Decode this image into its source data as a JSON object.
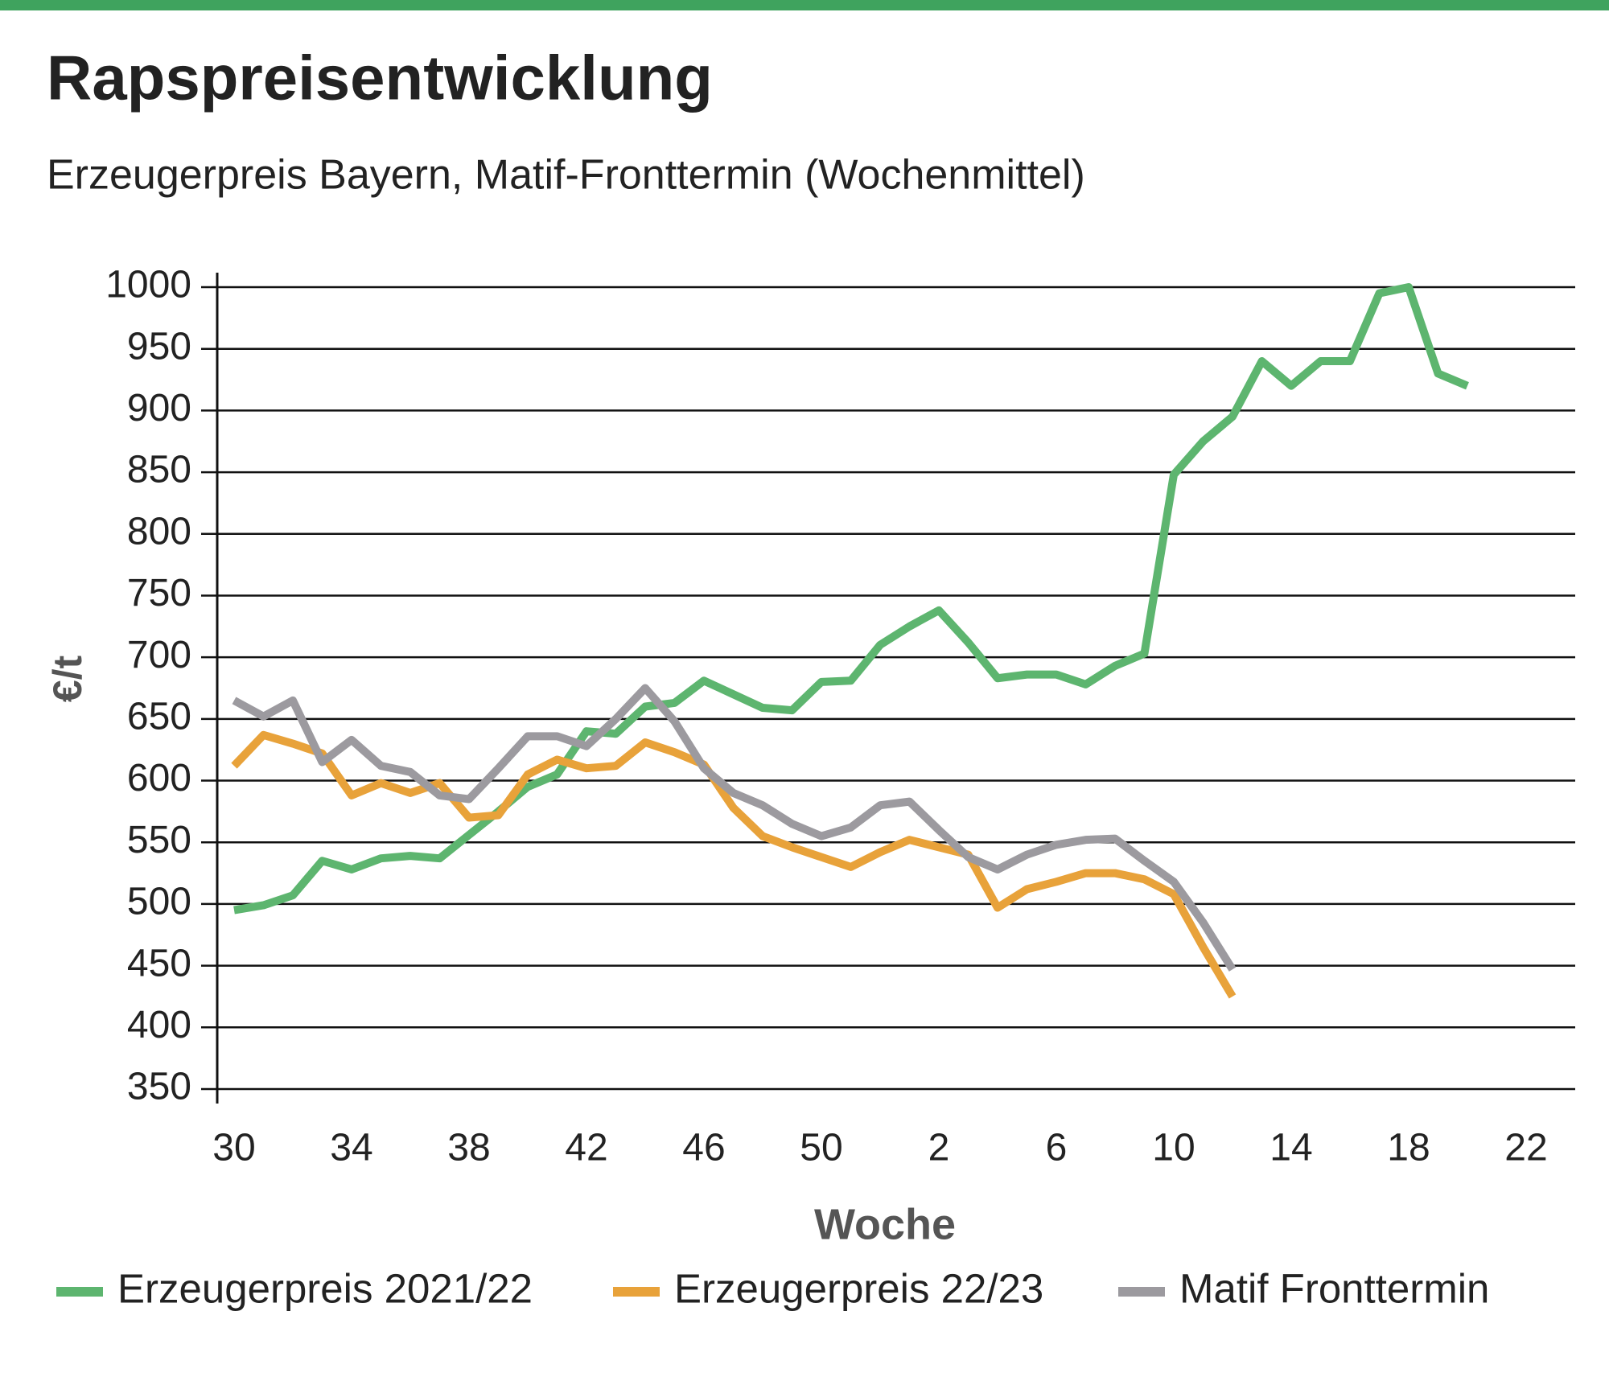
{
  "chart_data": {
    "type": "line",
    "title": "Rapspreisentwicklung",
    "subtitle": "Erzeugerpreis Bayern, Matif-Fronttermin (Wochenmittel)",
    "x_label": "Woche",
    "y_label": "€/t",
    "categories": [
      30,
      null,
      null,
      null,
      34,
      null,
      null,
      null,
      38,
      null,
      null,
      null,
      42,
      null,
      null,
      null,
      46,
      null,
      null,
      null,
      50,
      null,
      null,
      null,
      2,
      null,
      null,
      null,
      6,
      null,
      null,
      null,
      10,
      null,
      null,
      null,
      14,
      null,
      null,
      null,
      18,
      null,
      null,
      null,
      22
    ],
    "ylim": [
      350,
      1000
    ],
    "yticks": [
      350,
      400,
      450,
      500,
      550,
      600,
      650,
      700,
      750,
      800,
      850,
      900,
      950,
      1000
    ],
    "grid": true,
    "legend": "bottom",
    "series": [
      {
        "name": "Erzeugerpreis 2021/22",
        "color": "#5db56f",
        "values": [
          495,
          499,
          507,
          535,
          528,
          537,
          539,
          537,
          556,
          575,
          595,
          605,
          640,
          638,
          660,
          663,
          681,
          670,
          659,
          657,
          680,
          681,
          710,
          725,
          738,
          712,
          683,
          686,
          686,
          678,
          693,
          703,
          848,
          875,
          895,
          940,
          920,
          940,
          940,
          995,
          1000,
          930,
          920,
          null,
          null
        ]
      },
      {
        "name": "Erzeugerpreis 22/23",
        "color": "#e8a23a",
        "values": [
          612,
          637,
          630,
          622,
          588,
          598,
          590,
          598,
          570,
          572,
          605,
          617,
          610,
          612,
          631,
          623,
          613,
          578,
          555,
          546,
          538,
          530,
          542,
          552,
          546,
          540,
          497,
          512,
          518,
          525,
          525,
          520,
          508,
          465,
          425,
          null,
          null,
          null,
          null,
          null,
          null,
          null,
          null,
          null,
          null
        ]
      },
      {
        "name": "Matif Fronttermin",
        "color": "#9c9a9f",
        "values": [
          665,
          652,
          665,
          615,
          633,
          612,
          607,
          588,
          585,
          610,
          636,
          636,
          628,
          650,
          675,
          648,
          610,
          590,
          580,
          565,
          555,
          562,
          580,
          583,
          560,
          538,
          528,
          540,
          548,
          552,
          553,
          535,
          518,
          485,
          447,
          null,
          null,
          null,
          null,
          null,
          null,
          null,
          null,
          null,
          null
        ]
      }
    ]
  }
}
